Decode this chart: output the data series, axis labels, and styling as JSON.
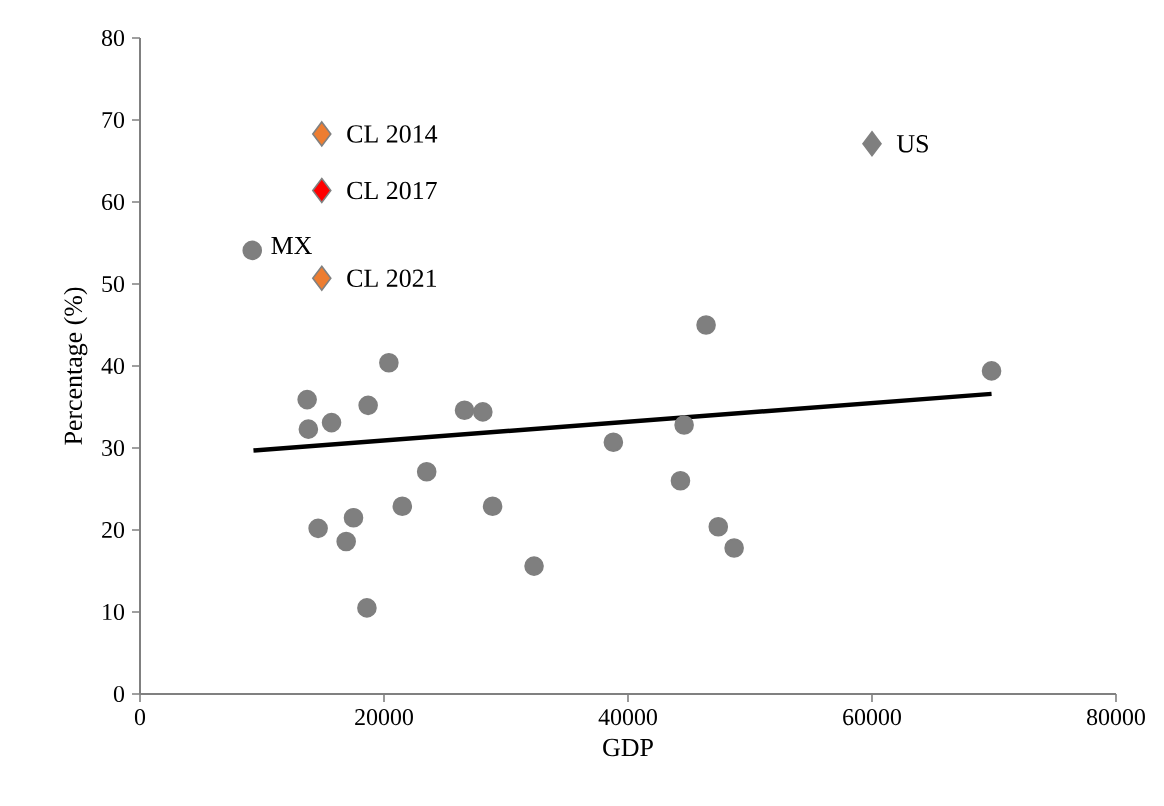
{
  "chart_data": {
    "type": "scatter",
    "xlabel": "GDP",
    "ylabel": "Percentage (%)",
    "xlim": [
      0,
      80000
    ],
    "ylim": [
      0,
      80
    ],
    "xticks": [
      0,
      20000,
      40000,
      60000,
      80000
    ],
    "yticks": [
      0,
      10,
      20,
      30,
      40,
      50,
      60,
      70,
      80
    ],
    "grid": false,
    "series": [
      {
        "color": "#7f7f7f",
        "marker": "circle",
        "x": [
          9200,
          13700,
          13800,
          15700,
          18700,
          20400,
          26600,
          28100,
          23500,
          14600,
          17500,
          16900,
          21500,
          28900,
          18600,
          32300,
          38800,
          44300,
          44600,
          46400,
          69800,
          47400,
          48700
        ],
        "values": [
          54.1,
          35.9,
          32.3,
          33.1,
          35.2,
          40.4,
          34.6,
          34.4,
          27.1,
          20.2,
          21.5,
          18.6,
          22.9,
          22.9,
          10.5,
          15.6,
          30.7,
          26.0,
          32.8,
          45.0,
          39.4,
          20.4,
          17.8
        ]
      },
      {
        "name": "CL 2014",
        "color": "#ed7d31",
        "marker": "diamond",
        "x": [
          14900
        ],
        "values": [
          68.3
        ]
      },
      {
        "name": "CL 2017",
        "color": "#ff0000",
        "marker": "diamond",
        "x": [
          14900
        ],
        "values": [
          61.4
        ]
      },
      {
        "name": "CL 2021",
        "color": "#ed7d31",
        "marker": "diamond",
        "x": [
          14900
        ],
        "values": [
          50.7
        ]
      },
      {
        "name": "US",
        "color": "#7f7f7f",
        "marker": "diamond",
        "x": [
          60000
        ],
        "values": [
          67.1
        ]
      },
      {
        "type": "line",
        "color": "#000000",
        "marker": "none",
        "x": [
          9300,
          69800
        ],
        "values": [
          29.7,
          36.6
        ]
      }
    ],
    "annotations": [
      {
        "text": "MX",
        "x": 9200,
        "y": 54.1
      }
    ]
  }
}
